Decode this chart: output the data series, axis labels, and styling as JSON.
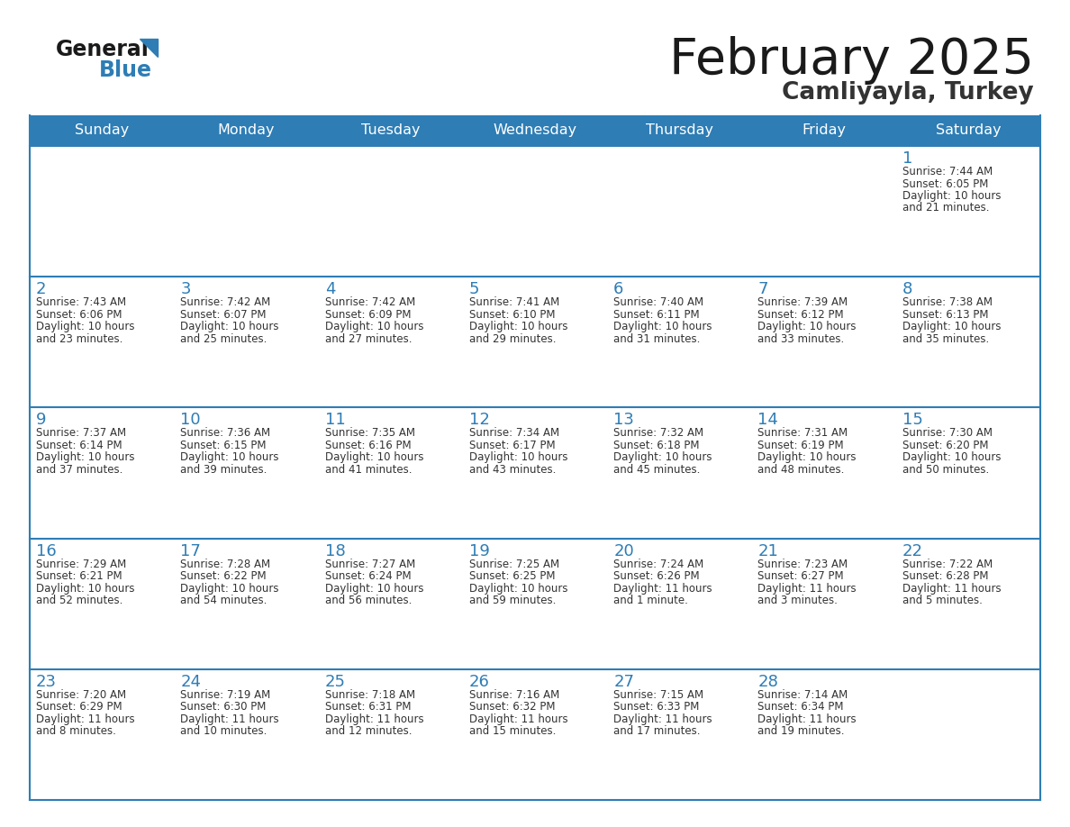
{
  "title": "February 2025",
  "subtitle": "Camliyayla, Turkey",
  "days_of_week": [
    "Sunday",
    "Monday",
    "Tuesday",
    "Wednesday",
    "Thursday",
    "Friday",
    "Saturday"
  ],
  "header_bg": "#2E7DB5",
  "header_text_color": "#FFFFFF",
  "border_color": "#2E7DB5",
  "day_num_color": "#2E7DB5",
  "info_text_color": "#333333",
  "title_color": "#1a1a1a",
  "subtitle_color": "#333333",
  "calendar_data": [
    [
      null,
      null,
      null,
      null,
      null,
      null,
      {
        "day": "1",
        "sunrise": "7:44 AM",
        "sunset": "6:05 PM",
        "daylight_h": "10",
        "daylight_m": "21 minutes"
      }
    ],
    [
      {
        "day": "2",
        "sunrise": "7:43 AM",
        "sunset": "6:06 PM",
        "daylight_h": "10",
        "daylight_m": "23 minutes"
      },
      {
        "day": "3",
        "sunrise": "7:42 AM",
        "sunset": "6:07 PM",
        "daylight_h": "10",
        "daylight_m": "25 minutes"
      },
      {
        "day": "4",
        "sunrise": "7:42 AM",
        "sunset": "6:09 PM",
        "daylight_h": "10",
        "daylight_m": "27 minutes"
      },
      {
        "day": "5",
        "sunrise": "7:41 AM",
        "sunset": "6:10 PM",
        "daylight_h": "10",
        "daylight_m": "29 minutes"
      },
      {
        "day": "6",
        "sunrise": "7:40 AM",
        "sunset": "6:11 PM",
        "daylight_h": "10",
        "daylight_m": "31 minutes"
      },
      {
        "day": "7",
        "sunrise": "7:39 AM",
        "sunset": "6:12 PM",
        "daylight_h": "10",
        "daylight_m": "33 minutes"
      },
      {
        "day": "8",
        "sunrise": "7:38 AM",
        "sunset": "6:13 PM",
        "daylight_h": "10",
        "daylight_m": "35 minutes"
      }
    ],
    [
      {
        "day": "9",
        "sunrise": "7:37 AM",
        "sunset": "6:14 PM",
        "daylight_h": "10",
        "daylight_m": "37 minutes"
      },
      {
        "day": "10",
        "sunrise": "7:36 AM",
        "sunset": "6:15 PM",
        "daylight_h": "10",
        "daylight_m": "39 minutes"
      },
      {
        "day": "11",
        "sunrise": "7:35 AM",
        "sunset": "6:16 PM",
        "daylight_h": "10",
        "daylight_m": "41 minutes"
      },
      {
        "day": "12",
        "sunrise": "7:34 AM",
        "sunset": "6:17 PM",
        "daylight_h": "10",
        "daylight_m": "43 minutes"
      },
      {
        "day": "13",
        "sunrise": "7:32 AM",
        "sunset": "6:18 PM",
        "daylight_h": "10",
        "daylight_m": "45 minutes"
      },
      {
        "day": "14",
        "sunrise": "7:31 AM",
        "sunset": "6:19 PM",
        "daylight_h": "10",
        "daylight_m": "48 minutes"
      },
      {
        "day": "15",
        "sunrise": "7:30 AM",
        "sunset": "6:20 PM",
        "daylight_h": "10",
        "daylight_m": "50 minutes"
      }
    ],
    [
      {
        "day": "16",
        "sunrise": "7:29 AM",
        "sunset": "6:21 PM",
        "daylight_h": "10",
        "daylight_m": "52 minutes"
      },
      {
        "day": "17",
        "sunrise": "7:28 AM",
        "sunset": "6:22 PM",
        "daylight_h": "10",
        "daylight_m": "54 minutes"
      },
      {
        "day": "18",
        "sunrise": "7:27 AM",
        "sunset": "6:24 PM",
        "daylight_h": "10",
        "daylight_m": "56 minutes"
      },
      {
        "day": "19",
        "sunrise": "7:25 AM",
        "sunset": "6:25 PM",
        "daylight_h": "10",
        "daylight_m": "59 minutes"
      },
      {
        "day": "20",
        "sunrise": "7:24 AM",
        "sunset": "6:26 PM",
        "daylight_h": "11",
        "daylight_m": "1 minute"
      },
      {
        "day": "21",
        "sunrise": "7:23 AM",
        "sunset": "6:27 PM",
        "daylight_h": "11",
        "daylight_m": "3 minutes"
      },
      {
        "day": "22",
        "sunrise": "7:22 AM",
        "sunset": "6:28 PM",
        "daylight_h": "11",
        "daylight_m": "5 minutes"
      }
    ],
    [
      {
        "day": "23",
        "sunrise": "7:20 AM",
        "sunset": "6:29 PM",
        "daylight_h": "11",
        "daylight_m": "8 minutes"
      },
      {
        "day": "24",
        "sunrise": "7:19 AM",
        "sunset": "6:30 PM",
        "daylight_h": "11",
        "daylight_m": "10 minutes"
      },
      {
        "day": "25",
        "sunrise": "7:18 AM",
        "sunset": "6:31 PM",
        "daylight_h": "11",
        "daylight_m": "12 minutes"
      },
      {
        "day": "26",
        "sunrise": "7:16 AM",
        "sunset": "6:32 PM",
        "daylight_h": "11",
        "daylight_m": "15 minutes"
      },
      {
        "day": "27",
        "sunrise": "7:15 AM",
        "sunset": "6:33 PM",
        "daylight_h": "11",
        "daylight_m": "17 minutes"
      },
      {
        "day": "28",
        "sunrise": "7:14 AM",
        "sunset": "6:34 PM",
        "daylight_h": "11",
        "daylight_m": "19 minutes"
      },
      null
    ]
  ]
}
